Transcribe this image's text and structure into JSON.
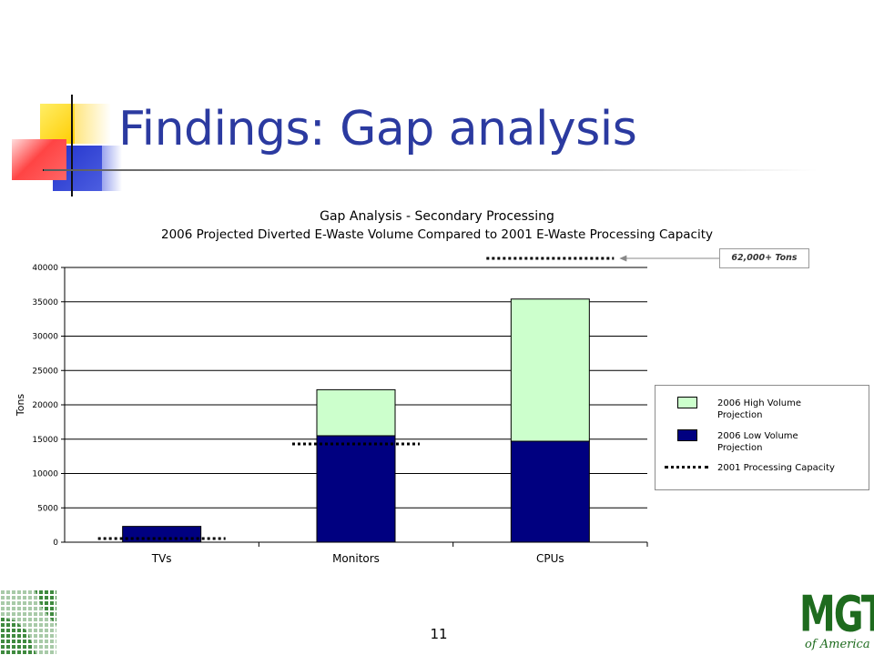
{
  "slide": {
    "title": "Findings: Gap analysis",
    "page_number": "11",
    "logo_text": "MGT",
    "logo_subtext": "of America"
  },
  "colors": {
    "title": "#2b3aa0",
    "high_volume": "#ccffcc",
    "low_volume": "#000080",
    "deco_yellow": "#ffcc00",
    "deco_blue": "#3333cc",
    "deco_red": "#ff3333",
    "logo_green": "#1e6b1e"
  },
  "chart_data": {
    "type": "bar",
    "stacked": true,
    "title": "Gap Analysis - Secondary Processing",
    "subtitle": "2006 Projected Diverted E-Waste Volume Compared to 2001 E-Waste Processing Capacity",
    "categories": [
      "TVs",
      "Monitors",
      "CPUs"
    ],
    "series": [
      {
        "name": "2006 Low Volume Projection",
        "values": [
          2300,
          15500,
          14700
        ]
      },
      {
        "name": "2006 High Volume Projection",
        "values": [
          0,
          6700,
          20700
        ]
      }
    ],
    "capacity": {
      "name": "2001 Processing Capacity",
      "values": [
        200,
        14300,
        62000
      ]
    },
    "ylabel": "Tons",
    "xlabel": "",
    "ylim": [
      0,
      40000
    ],
    "yticks": [
      0,
      5000,
      10000,
      15000,
      20000,
      25000,
      30000,
      35000,
      40000
    ],
    "grid": true,
    "legend_placement": "right",
    "legend": [
      {
        "label": "2006 High Volume Projection",
        "kind": "swatch-high"
      },
      {
        "label": "2006 Low Volume Projection",
        "kind": "swatch-low"
      },
      {
        "label": "2001 Processing Capacity",
        "kind": "dotted-line"
      }
    ],
    "annotation": "62,000+ Tons"
  }
}
